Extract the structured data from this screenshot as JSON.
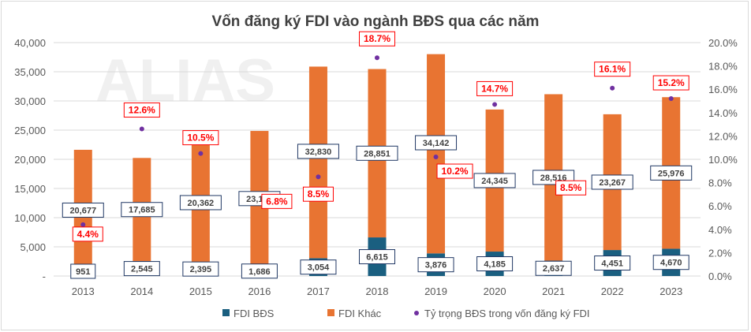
{
  "chart_data": {
    "type": "bar",
    "stacked": true,
    "title": "Vốn đăng ký FDI vào ngành BĐS qua các năm",
    "watermark": "ALIAS",
    "categories": [
      "2013",
      "2014",
      "2015",
      "2016",
      "2017",
      "2018",
      "2019",
      "2020",
      "2021",
      "2022",
      "2023"
    ],
    "series": [
      {
        "name": "FDI BĐS",
        "type": "bar",
        "axis": "left",
        "color": "#1a5f80",
        "values": [
          951,
          2545,
          2395,
          1686,
          3054,
          6615,
          3876,
          4185,
          2637,
          4451,
          4670
        ],
        "labels": [
          "951",
          "2,545",
          "2,395",
          "1,686",
          "3,054",
          "6,615",
          "3,876",
          "4,185",
          "2,637",
          "4,451",
          "4,670"
        ]
      },
      {
        "name": "FDI Khác",
        "type": "bar",
        "axis": "left",
        "color": "#e87432",
        "values": [
          20677,
          17685,
          20362,
          23172,
          32830,
          28851,
          34142,
          24345,
          28516,
          23267,
          25976
        ],
        "labels": [
          "20,677",
          "17,685",
          "20,362",
          "23,172",
          "32,830",
          "28,851",
          "34,142",
          "24,345",
          "28,516",
          "23,267",
          "25,976"
        ]
      },
      {
        "name": "Tỷ trọng BĐS trong vốn đăng ký FDI",
        "type": "scatter",
        "axis": "right",
        "color": "#7030a0",
        "values": [
          4.4,
          12.6,
          10.5,
          6.8,
          8.5,
          18.7,
          10.2,
          14.7,
          8.5,
          16.1,
          15.2
        ],
        "labels": [
          "4.4%",
          "12.6%",
          "10.5%",
          "6.8%",
          "8.5%",
          "18.7%",
          "10.2%",
          "14.7%",
          "8.5%",
          "16.1%",
          "15.2%"
        ]
      }
    ],
    "ylim": [
      0,
      40000
    ],
    "y_ticks": [
      "-",
      "5,000",
      "10,000",
      "15,000",
      "20,000",
      "25,000",
      "30,000",
      "35,000",
      "40,000"
    ],
    "y2lim": [
      0,
      20
    ],
    "y2_ticks": [
      "0.0%",
      "2.0%",
      "4.0%",
      "6.0%",
      "8.0%",
      "10.0%",
      "12.0%",
      "14.0%",
      "16.0%",
      "18.0%",
      "20.0%"
    ],
    "grid": true,
    "legend": "bottom",
    "label_color_pct": "#ff0000"
  }
}
